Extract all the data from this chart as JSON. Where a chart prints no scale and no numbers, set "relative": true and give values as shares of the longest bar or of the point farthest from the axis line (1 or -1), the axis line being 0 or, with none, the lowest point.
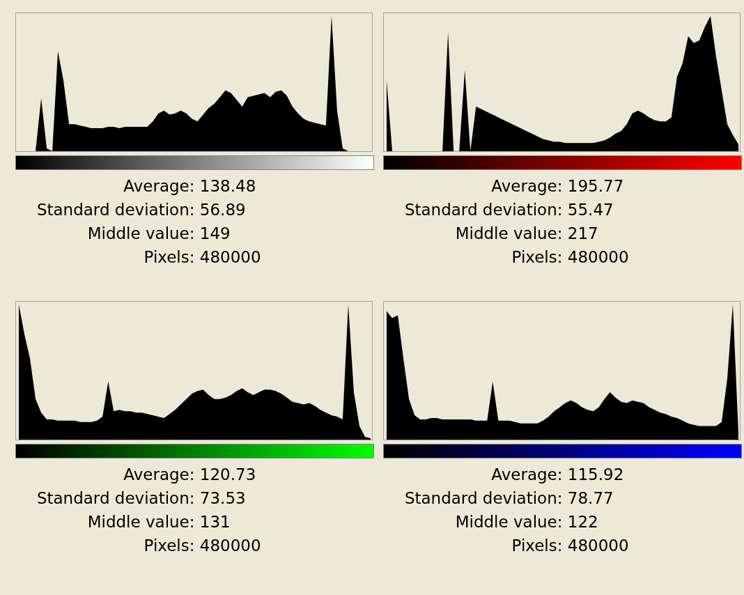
{
  "chart_data": [
    {
      "type": "area",
      "relative": true,
      "color": "#000000",
      "categories": [
        null,
        null,
        null,
        null,
        null,
        null,
        null,
        null,
        null,
        null,
        null,
        null,
        null,
        null,
        null,
        null,
        null,
        null,
        null,
        null,
        null,
        null,
        null,
        null,
        null,
        null,
        null,
        null,
        null,
        null,
        null,
        null,
        null,
        null,
        null,
        null,
        null,
        null,
        null,
        null,
        null,
        null,
        null,
        null,
        null,
        null,
        null,
        null,
        null,
        null,
        null,
        null,
        null,
        null,
        null,
        null,
        null,
        null,
        null,
        null,
        null,
        null,
        null,
        null
      ],
      "values": [
        0,
        0,
        0,
        0,
        0.39,
        0.02,
        0,
        0.74,
        0.52,
        0.2,
        0.2,
        0.19,
        0.18,
        0.17,
        0.17,
        0.17,
        0.18,
        0.18,
        0.17,
        0.18,
        0.18,
        0.18,
        0.18,
        0.18,
        0.22,
        0.28,
        0.3,
        0.27,
        0.28,
        0.3,
        0.28,
        0.24,
        0.22,
        0.27,
        0.32,
        0.35,
        0.4,
        0.45,
        0.43,
        0.38,
        0.33,
        0.4,
        0.41,
        0.42,
        0.43,
        0.4,
        0.44,
        0.45,
        0.41,
        0.33,
        0.28,
        0.24,
        0.22,
        0.21,
        0.2,
        0.19,
        1.0,
        0.3,
        0.02,
        0,
        0,
        0,
        0,
        0
      ],
      "annotations": [
        "Average: 138.48",
        "Standard deviation: 56.89",
        "Middle value: 149",
        "Pixels: 480000"
      ]
    },
    {
      "type": "area",
      "relative": true,
      "color": "#000000",
      "categories": [
        null,
        null,
        null,
        null,
        null,
        null,
        null,
        null,
        null,
        null,
        null,
        null,
        null,
        null,
        null,
        null,
        null,
        null,
        null,
        null,
        null,
        null,
        null,
        null,
        null,
        null,
        null,
        null,
        null,
        null,
        null,
        null,
        null,
        null,
        null,
        null,
        null,
        null,
        null,
        null,
        null,
        null,
        null,
        null,
        null,
        null,
        null,
        null,
        null,
        null,
        null,
        null,
        null,
        null,
        null,
        null,
        null,
        null,
        null,
        null,
        null,
        null,
        null,
        null
      ],
      "values": [
        0.52,
        0,
        0,
        0,
        0,
        0,
        0,
        0,
        0,
        0,
        0,
        0.88,
        0,
        0,
        0.6,
        0,
        0.33,
        0.31,
        0.29,
        0.27,
        0.25,
        0.23,
        0.21,
        0.19,
        0.17,
        0.15,
        0.13,
        0.11,
        0.09,
        0.08,
        0.07,
        0.07,
        0.06,
        0.06,
        0.06,
        0.06,
        0.06,
        0.06,
        0.07,
        0.08,
        0.1,
        0.13,
        0.15,
        0.2,
        0.28,
        0.3,
        0.28,
        0.25,
        0.23,
        0.22,
        0.22,
        0.25,
        0.55,
        0.65,
        0.85,
        0.8,
        0.82,
        0.92,
        1,
        0.7,
        0.45,
        0.2,
        0.12,
        0.05
      ],
      "annotations": [
        "Average: 195.77",
        "Standard deviation: 55.47",
        "Middle value: 217",
        "Pixels: 480000"
      ]
    },
    {
      "type": "area",
      "relative": true,
      "color": "#000000",
      "categories": [
        null,
        null,
        null,
        null,
        null,
        null,
        null,
        null,
        null,
        null,
        null,
        null,
        null,
        null,
        null,
        null,
        null,
        null,
        null,
        null,
        null,
        null,
        null,
        null,
        null,
        null,
        null,
        null,
        null,
        null,
        null,
        null,
        null,
        null,
        null,
        null,
        null,
        null,
        null,
        null,
        null,
        null,
        null,
        null,
        null,
        null,
        null,
        null,
        null,
        null,
        null,
        null,
        null,
        null,
        null,
        null,
        null,
        null,
        null,
        null,
        null,
        null,
        null,
        null
      ],
      "values": [
        1.0,
        0.78,
        0.6,
        0.3,
        0.2,
        0.15,
        0.15,
        0.14,
        0.14,
        0.14,
        0.14,
        0.13,
        0.13,
        0.13,
        0.14,
        0.17,
        0.43,
        0.21,
        0.22,
        0.21,
        0.21,
        0.2,
        0.2,
        0.19,
        0.18,
        0.17,
        0.16,
        0.19,
        0.22,
        0.26,
        0.3,
        0.34,
        0.36,
        0.37,
        0.33,
        0.3,
        0.3,
        0.31,
        0.33,
        0.36,
        0.38,
        0.35,
        0.33,
        0.35,
        0.37,
        0.37,
        0.36,
        0.34,
        0.31,
        0.28,
        0.27,
        0.26,
        0.27,
        0.25,
        0.22,
        0.2,
        0.18,
        0.17,
        0.15,
        1.0,
        0.35,
        0.1,
        0.02,
        0.01
      ],
      "annotations": [
        "Average: 120.73",
        "Standard deviation: 73.53",
        "Middle value: 131",
        "Pixels: 480000"
      ]
    },
    {
      "type": "area",
      "relative": true,
      "color": "#000000",
      "categories": [
        null,
        null,
        null,
        null,
        null,
        null,
        null,
        null,
        null,
        null,
        null,
        null,
        null,
        null,
        null,
        null,
        null,
        null,
        null,
        null,
        null,
        null,
        null,
        null,
        null,
        null,
        null,
        null,
        null,
        null,
        null,
        null,
        null,
        null,
        null,
        null,
        null,
        null,
        null,
        null,
        null,
        null,
        null,
        null,
        null,
        null,
        null,
        null,
        null,
        null,
        null,
        null,
        null,
        null,
        null,
        null,
        null,
        null,
        null,
        null,
        null,
        null,
        null,
        null
      ],
      "values": [
        0.95,
        0.9,
        0.92,
        0.6,
        0.3,
        0.18,
        0.15,
        0.15,
        0.16,
        0.16,
        0.15,
        0.15,
        0.15,
        0.15,
        0.15,
        0.15,
        0.14,
        0.14,
        0.14,
        0.43,
        0.14,
        0.14,
        0.14,
        0.13,
        0.12,
        0.12,
        0.12,
        0.12,
        0.14,
        0.17,
        0.21,
        0.24,
        0.27,
        0.29,
        0.27,
        0.24,
        0.22,
        0.21,
        0.24,
        0.3,
        0.35,
        0.31,
        0.28,
        0.27,
        0.29,
        0.28,
        0.27,
        0.24,
        0.22,
        0.2,
        0.19,
        0.17,
        0.16,
        0.14,
        0.12,
        0.11,
        0.1,
        0.1,
        0.1,
        0.1,
        0.13,
        0.45,
        1,
        0.05
      ],
      "annotations": [
        "Average: 115.92",
        "Standard deviation: 78.77",
        "Middle value: 122",
        "Pixels: 480000"
      ]
    }
  ]
}
